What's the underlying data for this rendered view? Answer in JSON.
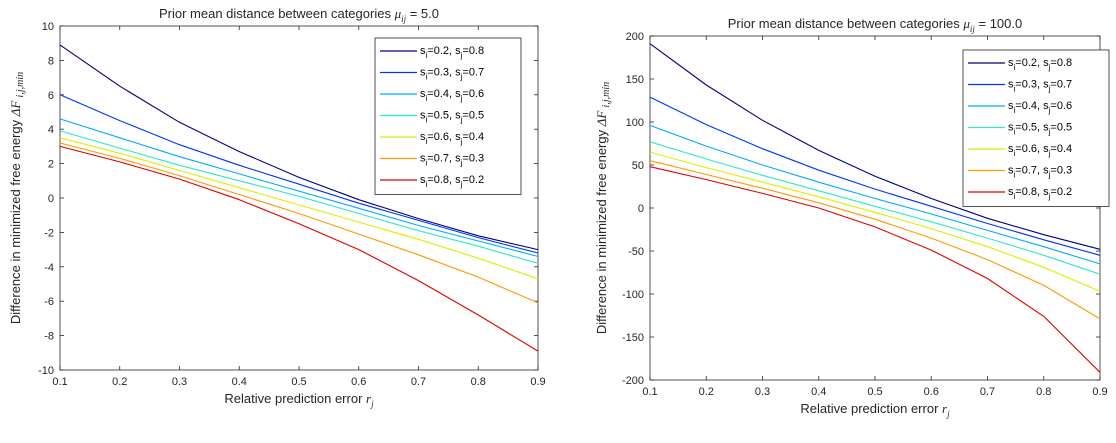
{
  "chart_data": [
    {
      "type": "line",
      "title_text": "Prior mean distance between categories",
      "title_symbol": "μ",
      "title_symbol_sub": "ij",
      "title_value": "= 5.0",
      "xlabel_text": "Relative prediction error",
      "xlabel_symbol": "r",
      "xlabel_symbol_sub": "j",
      "ylabel_text": "Difference in minimized free energy",
      "ylabel_symbol": "ΔF",
      "ylabel_symbol_sub": "i,j,min",
      "xlim": [
        0.1,
        0.9
      ],
      "ylim": [
        -10,
        10
      ],
      "xticks": [
        "0.1",
        "0.2",
        "0.3",
        "0.4",
        "0.5",
        "0.6",
        "0.7",
        "0.8",
        "0.9"
      ],
      "yticks": [
        "10",
        "8",
        "6",
        "4",
        "2",
        "0",
        "-2",
        "-4",
        "-6",
        "-8",
        "-10"
      ],
      "legend_position": "top-right",
      "x": [
        0.1,
        0.2,
        0.3,
        0.4,
        0.5,
        0.6,
        0.7,
        0.8,
        0.9
      ],
      "series": [
        {
          "name": "s_i=0.2, s_j=0.8",
          "color": "#00007f",
          "values": [
            8.9,
            6.5,
            4.4,
            2.7,
            1.2,
            -0.1,
            -1.2,
            -2.2,
            -3.0
          ]
        },
        {
          "name": "s_i=0.3, s_j=0.7",
          "color": "#0033ff",
          "values": [
            6.0,
            4.5,
            3.1,
            1.9,
            0.8,
            -0.3,
            -1.3,
            -2.3,
            -3.2
          ]
        },
        {
          "name": "s_i=0.4, s_j=0.6",
          "color": "#00aaff",
          "values": [
            4.6,
            3.5,
            2.4,
            1.4,
            0.4,
            -0.6,
            -1.6,
            -2.5,
            -3.4
          ]
        },
        {
          "name": "s_i=0.5, s_j=0.5",
          "color": "#2ee8c8",
          "values": [
            3.9,
            2.9,
            1.9,
            1.0,
            0.1,
            -0.9,
            -1.9,
            -2.8,
            -3.8
          ]
        },
        {
          "name": "s_i=0.6, s_j=0.4",
          "color": "#d7f000",
          "values": [
            3.5,
            2.6,
            1.6,
            0.6,
            -0.4,
            -1.4,
            -2.4,
            -3.5,
            -4.7
          ]
        },
        {
          "name": "s_i=0.7, s_j=0.3",
          "color": "#ff9900",
          "values": [
            3.2,
            2.3,
            1.3,
            0.2,
            -0.9,
            -2.1,
            -3.3,
            -4.6,
            -6.1
          ]
        },
        {
          "name": "s_i=0.8, s_j=0.2",
          "color": "#e00000",
          "values": [
            3.0,
            2.1,
            1.1,
            -0.1,
            -1.5,
            -3.0,
            -4.8,
            -6.8,
            -8.9
          ]
        }
      ]
    },
    {
      "type": "line",
      "title_text": "Prior mean distance between categories",
      "title_symbol": "μ",
      "title_symbol_sub": "ij",
      "title_value": "= 100.0",
      "xlabel_text": "Relative prediction error",
      "xlabel_symbol": "r",
      "xlabel_symbol_sub": "j",
      "ylabel_text": "Difference in minimized free energy",
      "ylabel_symbol": "ΔF",
      "ylabel_symbol_sub": "i,j,min",
      "xlim": [
        0.1,
        0.9
      ],
      "ylim": [
        -200,
        200
      ],
      "xticks": [
        "0.1",
        "0.2",
        "0.3",
        "0.4",
        "0.5",
        "0.6",
        "0.7",
        "0.8",
        "0.9"
      ],
      "yticks": [
        "200",
        "150",
        "100",
        "50",
        "0",
        "-50",
        "-100",
        "-150",
        "-200"
      ],
      "legend_position": "top-right",
      "x": [
        0.1,
        0.2,
        0.3,
        0.4,
        0.5,
        0.6,
        0.7,
        0.8,
        0.9
      ],
      "series": [
        {
          "name": "s_i=0.2, s_j=0.8",
          "color": "#00007f",
          "values": [
            191,
            143,
            102,
            67,
            37,
            11,
            -12,
            -31,
            -48
          ]
        },
        {
          "name": "s_i=0.3, s_j=0.7",
          "color": "#0033ff",
          "values": [
            129,
            97,
            69,
            44,
            22,
            2,
            -18,
            -37,
            -55
          ]
        },
        {
          "name": "s_i=0.4, s_j=0.6",
          "color": "#00aaff",
          "values": [
            96,
            72,
            50,
            30,
            11,
            -7,
            -26,
            -45,
            -65
          ]
        },
        {
          "name": "s_i=0.5, s_j=0.5",
          "color": "#2ee8c8",
          "values": [
            77,
            57,
            38,
            20,
            2,
            -16,
            -35,
            -55,
            -77
          ]
        },
        {
          "name": "s_i=0.6, s_j=0.4",
          "color": "#d7f000",
          "values": [
            65,
            47,
            30,
            13,
            -5,
            -24,
            -45,
            -69,
            -97
          ]
        },
        {
          "name": "s_i=0.7, s_j=0.3",
          "color": "#ff9900",
          "values": [
            55,
            39,
            23,
            6,
            -13,
            -35,
            -60,
            -90,
            -129
          ]
        },
        {
          "name": "s_i=0.8, s_j=0.2",
          "color": "#e00000",
          "values": [
            48,
            33,
            17,
            0,
            -22,
            -49,
            -82,
            -126,
            -191
          ]
        }
      ]
    }
  ]
}
